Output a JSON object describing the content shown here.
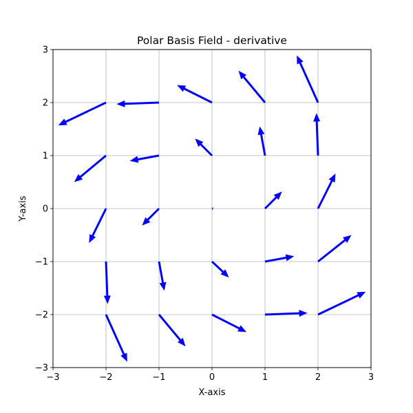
{
  "chart_data": {
    "type": "quiver",
    "title": "Polar Basis Field - derivative",
    "xlabel": "X-axis",
    "ylabel": "Y-axis",
    "xlim": [
      -3,
      3
    ],
    "ylim": [
      -3,
      3
    ],
    "grid": true,
    "arrow_color": "#0000ff",
    "x_ticks": [
      -3,
      -2,
      -1,
      0,
      1,
      2,
      3
    ],
    "y_ticks": [
      -3,
      -2,
      -1,
      0,
      1,
      2,
      3
    ],
    "x_tick_labels": [
      "−3",
      "−2",
      "−1",
      "0",
      "1",
      "2",
      "3"
    ],
    "y_tick_labels": [
      "−3",
      "−2",
      "−1",
      "0",
      "1",
      "2",
      "3"
    ],
    "vectors": [
      {
        "x": -2,
        "y": -2,
        "u": 0.4,
        "v": -0.89
      },
      {
        "x": -1,
        "y": -2,
        "u": 0.5,
        "v": -0.6
      },
      {
        "x": 0,
        "y": -2,
        "u": 0.65,
        "v": -0.33
      },
      {
        "x": 1,
        "y": -2,
        "u": 0.8,
        "v": 0.03
      },
      {
        "x": 2,
        "y": -2,
        "u": 0.9,
        "v": 0.43
      },
      {
        "x": -2,
        "y": -1,
        "u": 0.03,
        "v": -0.8
      },
      {
        "x": -1,
        "y": -1,
        "u": 0.1,
        "v": -0.55
      },
      {
        "x": 0,
        "y": -1,
        "u": 0.32,
        "v": -0.3
      },
      {
        "x": 1,
        "y": -1,
        "u": 0.55,
        "v": 0.1
      },
      {
        "x": 2,
        "y": -1,
        "u": 0.63,
        "v": 0.5
      },
      {
        "x": -2,
        "y": 0,
        "u": -0.32,
        "v": -0.65
      },
      {
        "x": -1,
        "y": 0,
        "u": -0.32,
        "v": -0.32
      },
      {
        "x": 0,
        "y": 0,
        "u": 0.01,
        "v": 0.0
      },
      {
        "x": 1,
        "y": 0,
        "u": 0.32,
        "v": 0.32
      },
      {
        "x": 2,
        "y": 0,
        "u": 0.33,
        "v": 0.66
      },
      {
        "x": -2,
        "y": 1,
        "u": -0.6,
        "v": -0.5
      },
      {
        "x": -1,
        "y": 1,
        "u": -0.55,
        "v": -0.1
      },
      {
        "x": 0,
        "y": 1,
        "u": -0.32,
        "v": 0.32
      },
      {
        "x": 1,
        "y": 1,
        "u": -0.1,
        "v": 0.55
      },
      {
        "x": 2,
        "y": 1,
        "u": -0.03,
        "v": 0.8
      },
      {
        "x": -2,
        "y": 2,
        "u": -0.9,
        "v": -0.43
      },
      {
        "x": -1,
        "y": 2,
        "u": -0.8,
        "v": -0.03
      },
      {
        "x": 0,
        "y": 2,
        "u": -0.66,
        "v": 0.33
      },
      {
        "x": 1,
        "y": 2,
        "u": -0.5,
        "v": 0.6
      },
      {
        "x": 2,
        "y": 2,
        "u": -0.4,
        "v": 0.89
      }
    ]
  }
}
